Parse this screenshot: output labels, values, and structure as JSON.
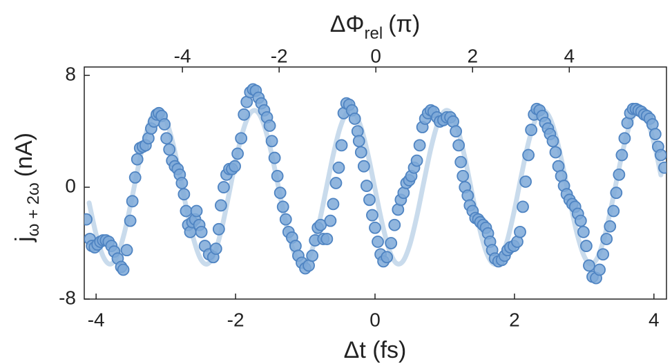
{
  "chart_data": {
    "type": "scatter",
    "xlabel": "Δt (fs)",
    "x2label": {
      "text": "ΔΦ",
      "sub": "rel",
      "unit": "(π)"
    },
    "ylabel": {
      "text": "j",
      "sub": "ω + 2ω",
      "unit": "(nA)"
    },
    "xlim": [
      -4.17,
      4.18
    ],
    "xticks": [
      -4,
      -2,
      0,
      2,
      4
    ],
    "x2lim": [
      -6.03,
      6.01
    ],
    "x2ticks": [
      -4,
      -2,
      0,
      2,
      4
    ],
    "ylim": [
      -8,
      8.6
    ],
    "yticks": [
      -8,
      0,
      8
    ],
    "series": [
      {
        "type": "line",
        "color": "#c9dbec",
        "x": [
          -4.1,
          -4.0,
          -3.9,
          -3.8,
          -3.7,
          -3.6,
          -3.5,
          -3.4,
          -3.3,
          -3.2,
          -3.1,
          -3.0,
          -2.9,
          -2.8,
          -2.7,
          -2.6,
          -2.5,
          -2.4,
          -2.3,
          -2.2,
          -2.1,
          -2.0,
          -1.9,
          -1.8,
          -1.7,
          -1.6,
          -1.5,
          -1.4,
          -1.3,
          -1.2,
          -1.1,
          -1.0,
          -0.9,
          -0.8,
          -0.7,
          -0.6,
          -0.5,
          -0.4,
          -0.3,
          -0.2,
          -0.1,
          0.0,
          0.1,
          0.2,
          0.3,
          0.4,
          0.5,
          0.6,
          0.7,
          0.8,
          0.9,
          1.0,
          1.1,
          1.2,
          1.3,
          1.4,
          1.5,
          1.6,
          1.7,
          1.8,
          1.9,
          2.0,
          2.1,
          2.2,
          2.3,
          2.4,
          2.5,
          2.6,
          2.7,
          2.8,
          2.9,
          3.0,
          3.1,
          3.2,
          3.3,
          3.4,
          3.5,
          3.6,
          3.7,
          3.8,
          3.9,
          4.0,
          4.1
        ],
        "values": [
          -1.12,
          -3.37,
          -4.94,
          -5.5,
          -4.94,
          -3.37,
          -1.12,
          1.36,
          3.56,
          5.04,
          5.49,
          4.83,
          3.17,
          0.88,
          -1.61,
          -3.75,
          -5.14,
          -5.48,
          -4.7,
          -2.98,
          -0.62,
          1.84,
          3.92,
          5.22,
          5.45,
          4.56,
          2.75,
          0.38,
          -2.08,
          -4.1,
          -5.3,
          -5.41,
          -4.43,
          -2.53,
          -0.12,
          2.3,
          4.26,
          5.36,
          5.36,
          4.27,
          2.31,
          -0.13,
          -2.53,
          -4.43,
          -5.41,
          -5.3,
          -4.1,
          -2.07,
          0.37,
          2.75,
          4.57,
          5.45,
          5.22,
          3.93,
          1.84,
          -0.63,
          -2.97,
          -4.7,
          -5.48,
          -5.14,
          -3.75,
          -1.61,
          0.87,
          3.18,
          4.82,
          5.49,
          5.04,
          3.56,
          1.36,
          -1.12,
          -3.37,
          -4.94,
          -5.5,
          -4.94,
          -3.37,
          -1.12,
          1.36,
          3.56,
          5.04,
          5.49,
          4.83,
          3.17,
          0.88
        ]
      },
      {
        "type": "scatter",
        "color": "#7ea9d8",
        "edge": "#4f84c2",
        "x": [
          -4.14,
          -4.09,
          -4.06,
          -4.02,
          -3.98,
          -3.94,
          -3.9,
          -3.86,
          -3.82,
          -3.78,
          -3.74,
          -3.69,
          -3.64,
          -3.61,
          -3.56,
          -3.51,
          -3.48,
          -3.44,
          -3.41,
          -3.37,
          -3.33,
          -3.29,
          -3.25,
          -3.21,
          -3.17,
          -3.13,
          -3.1,
          -3.06,
          -3.02,
          -2.99,
          -2.95,
          -2.91,
          -2.87,
          -2.83,
          -2.8,
          -2.77,
          -2.74,
          -2.71,
          -2.68,
          -2.65,
          -2.62,
          -2.58,
          -2.56,
          -2.52,
          -2.49,
          -2.44,
          -2.38,
          -2.32,
          -2.28,
          -2.24,
          -2.21,
          -2.17,
          -2.13,
          -2.09,
          -2.05,
          -2.01,
          -1.97,
          -1.92,
          -1.88,
          -1.84,
          -1.79,
          -1.75,
          -1.71,
          -1.67,
          -1.63,
          -1.59,
          -1.55,
          -1.51,
          -1.48,
          -1.44,
          -1.4,
          -1.36,
          -1.32,
          -1.28,
          -1.24,
          -1.19,
          -1.14,
          -1.1,
          -1.05,
          -1.0,
          -0.95,
          -0.9,
          -0.86,
          -0.82,
          -0.78,
          -0.74,
          -0.69,
          -0.64,
          -0.6,
          -0.56,
          -0.52,
          -0.48,
          -0.45,
          -0.41,
          -0.37,
          -0.33,
          -0.29,
          -0.25,
          -0.23,
          -0.2,
          -0.16,
          -0.12,
          -0.08,
          -0.04,
          0,
          0.04,
          0.08,
          0.12,
          0.17,
          0.23,
          0.28,
          0.33,
          0.37,
          0.41,
          0.45,
          0.49,
          0.52,
          0.56,
          0.6,
          0.64,
          0.68,
          0.72,
          0.76,
          0.8,
          0.84,
          0.89,
          0.93,
          0.98,
          1.03,
          1.08,
          1.12,
          1.16,
          1.2,
          1.23,
          1.26,
          1.29,
          1.33,
          1.36,
          1.4,
          1.44,
          1.48,
          1.51,
          1.55,
          1.59,
          1.62,
          1.65,
          1.68,
          1.72,
          1.77,
          1.82,
          1.86,
          1.9,
          1.94,
          1.99,
          2.04,
          2.08,
          2.12,
          2.16,
          2.2,
          2.24,
          2.28,
          2.32,
          2.36,
          2.4,
          2.44,
          2.48,
          2.51,
          2.55,
          2.59,
          2.63,
          2.67,
          2.71,
          2.75,
          2.79,
          2.83,
          2.87,
          2.91,
          2.95,
          2.99,
          3.03,
          3.07,
          3.12,
          3.17,
          3.22,
          3.27,
          3.32,
          3.37,
          3.42,
          3.46,
          3.5,
          3.54,
          3.58,
          3.62,
          3.66,
          3.7,
          3.74,
          3.78,
          3.82,
          3.86,
          3.9,
          3.94,
          3.98,
          4.02,
          4.06,
          4.1,
          4.15
        ],
        "values": [
          -2.3,
          -3.7,
          -4.2,
          -4.3,
          -4.1,
          -3.9,
          -3.8,
          -3.8,
          -3.9,
          -4.2,
          -4.6,
          -5.1,
          -5.7,
          -5.9,
          -4.5,
          -2.4,
          -1.0,
          0.7,
          2.0,
          2.8,
          2.9,
          3.0,
          3.5,
          4.2,
          4.7,
          5.2,
          5.3,
          5.1,
          4.5,
          3.5,
          2.7,
          1.9,
          1.5,
          1.3,
          0.9,
          0.3,
          -0.5,
          -1.7,
          -2.7,
          -3.2,
          -2.5,
          -2.3,
          -1.7,
          -2.7,
          -3.2,
          -4.2,
          -4.8,
          -5.0,
          -4.4,
          -3.0,
          -1.3,
          0.0,
          0.9,
          1.3,
          1.3,
          1.5,
          2.4,
          3.5,
          5.2,
          6.1,
          6.8,
          7.0,
          6.9,
          6.4,
          6.0,
          5.5,
          5.0,
          4.4,
          3.3,
          2.1,
          0.8,
          -0.4,
          -1.4,
          -2.3,
          -3.2,
          -3.6,
          -4.2,
          -4.9,
          -5.4,
          -5.8,
          -5.6,
          -4.9,
          -3.8,
          -2.9,
          -2.7,
          -3.7,
          -3.7,
          -2.4,
          -1.2,
          0.3,
          1.4,
          3.0,
          5.3,
          6.0,
          5.9,
          5.5,
          4.9,
          4.0,
          3.3,
          2.5,
          1.5,
          0.1,
          -0.9,
          -2.0,
          -2.9,
          -3.9,
          -4.8,
          -5.3,
          -5.0,
          -4.0,
          -2.7,
          -1.6,
          -0.9,
          -0.4,
          0.3,
          0.5,
          0.8,
          1.4,
          1.9,
          3.0,
          4.3,
          4.9,
          5.3,
          5.5,
          5.4,
          5.0,
          4.7,
          4.8,
          5.0,
          5.0,
          4.7,
          4.0,
          3.0,
          1.8,
          0.8,
          0.0,
          -0.6,
          -1.3,
          -1.7,
          -2.2,
          -2.3,
          -2.5,
          -2.7,
          -2.9,
          -3.3,
          -3.9,
          -4.5,
          -5.1,
          -5.3,
          -5.2,
          -4.9,
          -4.5,
          -4.3,
          -4.2,
          -3.9,
          -3.2,
          -1.4,
          0.4,
          2.3,
          4.1,
          5.2,
          5.6,
          5.5,
          5.1,
          4.6,
          4.2,
          3.8,
          3.3,
          2.5,
          1.5,
          0.8,
          0.1,
          -0.5,
          -0.9,
          -1.2,
          -1.4,
          -1.9,
          -2.4,
          -3.2,
          -4.2,
          -5.6,
          -6.4,
          -6.5,
          -5.9,
          -4.8,
          -3.7,
          -2.8,
          -1.7,
          -0.4,
          0.9,
          2.3,
          3.5,
          4.6,
          5.3,
          5.6,
          5.6,
          5.5,
          5.4,
          5.2,
          5.1,
          4.9,
          4.5,
          3.8,
          2.9,
          2.3,
          1.4
        ]
      }
    ]
  }
}
